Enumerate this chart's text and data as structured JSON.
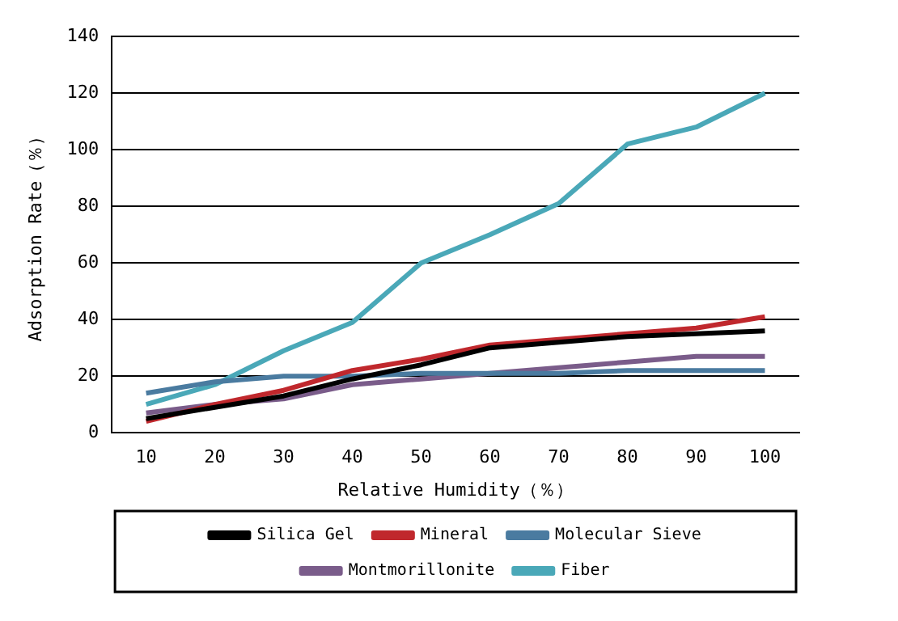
{
  "chart_data": {
    "type": "line",
    "xlabel": "Relative Humidity（％）",
    "ylabel": "Adsorption Rate（％）",
    "categories": [
      "10",
      "20",
      "30",
      "40",
      "50",
      "60",
      "70",
      "80",
      "90",
      "100"
    ],
    "series": [
      {
        "name": "Silica Gel",
        "color": "#000000",
        "values": [
          5,
          9,
          13,
          19,
          24,
          30,
          32,
          34,
          35,
          36
        ]
      },
      {
        "name": "Mineral",
        "color": "#c0282d",
        "values": [
          4,
          10,
          15,
          22,
          26,
          31,
          33,
          35,
          37,
          41
        ]
      },
      {
        "name": "Molecular Sieve",
        "color": "#4a7ba0",
        "values": [
          14,
          18,
          20,
          20,
          21,
          21,
          21,
          22,
          22,
          22
        ]
      },
      {
        "name": "Montmorillonite",
        "color": "#7a5c8a",
        "values": [
          7,
          10,
          12,
          17,
          19,
          21,
          23,
          25,
          27,
          27
        ]
      },
      {
        "name": "Fiber",
        "color": "#4aa8b8",
        "values": [
          10,
          17,
          29,
          39,
          60,
          70,
          81,
          102,
          108,
          120
        ]
      }
    ],
    "ylim": [
      0,
      140
    ],
    "yticks": [
      0,
      20,
      40,
      60,
      80,
      100,
      120,
      140
    ],
    "grid": "y",
    "legend": "bottom",
    "marker": "none",
    "line_style": "solid"
  }
}
